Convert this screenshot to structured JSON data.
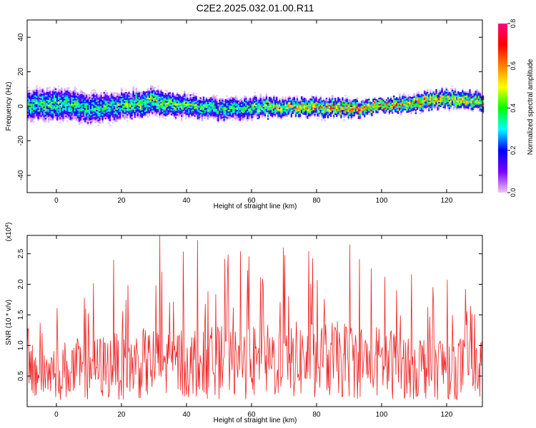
{
  "title": "C2E2.2025.032.01.00.R11",
  "chart_data": [
    {
      "type": "heatmap",
      "xlabel": "Height of straight line (km)",
      "ylabel": "Frequency (Hz)",
      "xlim": [
        -9,
        131
      ],
      "ylim": [
        -50,
        50
      ],
      "x_ticks": [
        0,
        20,
        40,
        60,
        80,
        100,
        120
      ],
      "y_ticks": [
        -40,
        -20,
        0,
        20,
        40
      ],
      "grid": false,
      "colorbar": {
        "label": "Normalized spectral amplitude",
        "range": [
          0.0,
          0.8
        ],
        "ticks": [
          "0.0",
          "0.2",
          "0.4",
          "0.6",
          "0.8"
        ],
        "colormap": [
          "#f4c2f4",
          "#7a00ff",
          "#0000ff",
          "#00ffff",
          "#00ff00",
          "#ffff00",
          "#ff8000",
          "#ff0000",
          "#ff0080"
        ]
      },
      "ridge": {
        "x": [
          -9,
          0,
          10,
          20,
          30,
          40,
          50,
          60,
          70,
          80,
          90,
          100,
          110,
          120,
          131
        ],
        "center_hz": [
          1,
          2,
          -1,
          1,
          3,
          1,
          -2,
          0,
          0,
          0,
          -1,
          1,
          2,
          5,
          3
        ],
        "half_width_hz": [
          7,
          7,
          7,
          6,
          6,
          5,
          5,
          5,
          4,
          4,
          4,
          3,
          4,
          4,
          4
        ],
        "peak_amplitude": [
          0.35,
          0.4,
          0.32,
          0.4,
          0.45,
          0.4,
          0.35,
          0.4,
          0.5,
          0.6,
          0.6,
          0.65,
          0.55,
          0.55,
          0.55
        ]
      }
    },
    {
      "type": "line",
      "xlabel": "Height of straight line (km)",
      "ylabel": "SNR (10 * v/v)",
      "y_multiplier": "(x10^4)",
      "xlim": [
        -9,
        131
      ],
      "ylim": [
        0,
        2.8
      ],
      "x_ticks": [
        0,
        20,
        40,
        60,
        80,
        100,
        120
      ],
      "y_ticks": [
        0.5,
        1.0,
        1.5,
        2.0,
        2.5
      ],
      "color": "#ee2222",
      "grid": false,
      "x_step": 0.2,
      "envelope": {
        "x": [
          -9,
          0,
          20,
          32,
          40,
          60,
          70,
          90,
          100,
          110,
          130
        ],
        "mean": [
          0.6,
          0.65,
          0.75,
          0.8,
          0.8,
          0.8,
          0.85,
          0.85,
          0.8,
          0.75,
          0.7
        ],
        "peak": [
          1.4,
          1.65,
          2.4,
          2.82,
          2.7,
          2.55,
          2.6,
          2.65,
          2.3,
          2.25,
          2.0
        ]
      },
      "peaks": [
        {
          "x": 17.5,
          "y": 2.4
        },
        {
          "x": 31.8,
          "y": 2.82
        },
        {
          "x": 43.5,
          "y": 2.72
        },
        {
          "x": 69.9,
          "y": 2.6
        },
        {
          "x": 90.2,
          "y": 2.65
        }
      ]
    }
  ]
}
